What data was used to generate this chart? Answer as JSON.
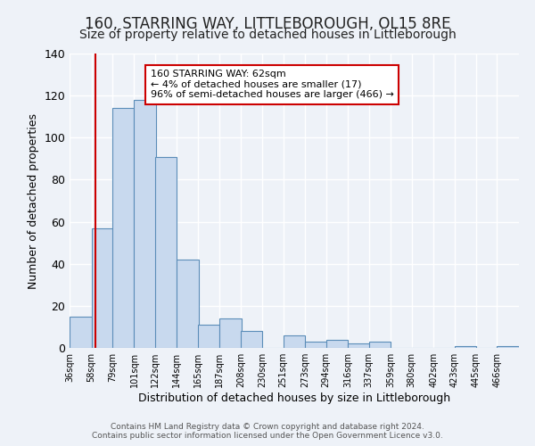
{
  "title": "160, STARRING WAY, LITTLEBOROUGH, OL15 8RE",
  "subtitle": "Size of property relative to detached houses in Littleborough",
  "xlabel": "Distribution of detached houses by size in Littleborough",
  "ylabel": "Number of detached properties",
  "bin_labels": [
    "36sqm",
    "58sqm",
    "79sqm",
    "101sqm",
    "122sqm",
    "144sqm",
    "165sqm",
    "187sqm",
    "208sqm",
    "230sqm",
    "251sqm",
    "273sqm",
    "294sqm",
    "316sqm",
    "337sqm",
    "359sqm",
    "380sqm",
    "402sqm",
    "423sqm",
    "445sqm",
    "466sqm"
  ],
  "bin_edges": [
    36,
    58,
    79,
    101,
    122,
    144,
    165,
    187,
    208,
    230,
    251,
    273,
    294,
    316,
    337,
    359,
    380,
    402,
    423,
    445,
    466
  ],
  "counts": [
    15,
    57,
    114,
    118,
    91,
    42,
    11,
    14,
    8,
    0,
    6,
    3,
    4,
    2,
    3,
    0,
    0,
    0,
    1,
    0,
    1
  ],
  "bar_color": "#c8d9ee",
  "bar_edge_color": "#5b8db8",
  "vline_x": 62,
  "vline_color": "#cc0000",
  "annotation_line1": "160 STARRING WAY: 62sqm",
  "annotation_line2": "← 4% of detached houses are smaller (17)",
  "annotation_line3": "96% of semi-detached houses are larger (466) →",
  "annotation_box_edgecolor": "#cc0000",
  "annotation_box_facecolor": "#ffffff",
  "ylim": [
    0,
    140
  ],
  "yticks": [
    0,
    20,
    40,
    60,
    80,
    100,
    120,
    140
  ],
  "footer1": "Contains HM Land Registry data © Crown copyright and database right 2024.",
  "footer2": "Contains public sector information licensed under the Open Government Licence v3.0.",
  "bg_color": "#eef2f8",
  "plot_bg_color": "#eef2f8",
  "grid_color": "#ffffff",
  "title_fontsize": 12,
  "subtitle_fontsize": 10
}
